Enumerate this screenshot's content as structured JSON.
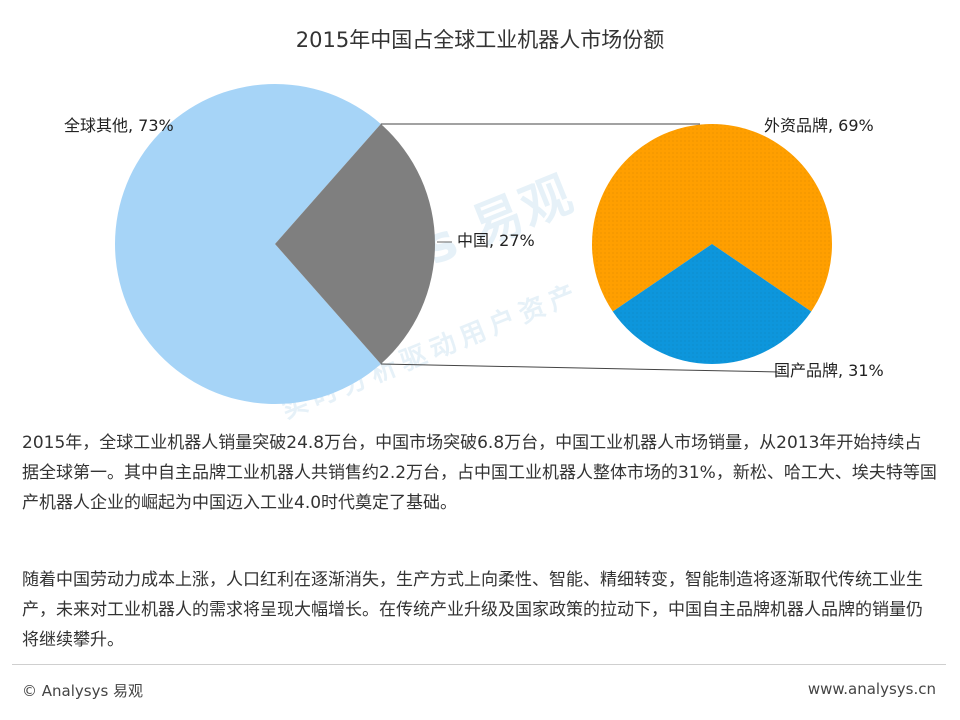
{
  "chart_data": [
    {
      "type": "pie",
      "title": "2015年中国占全球工业机器人市场份额",
      "labels": [
        "全球其他, 73%",
        "中国, 27%"
      ],
      "categories": [
        "全球其他",
        "中国"
      ],
      "values": [
        73,
        27
      ],
      "colors": [
        "#a6d4f7",
        "#7f7f7f"
      ]
    },
    {
      "type": "pie",
      "labels": [
        "外资品牌, 69%",
        "国产品牌, 31%"
      ],
      "categories": [
        "外资品牌",
        "国产品牌"
      ],
      "values": [
        69,
        31
      ],
      "colors": [
        "#ff9f00",
        "#0d96dc"
      ]
    }
  ],
  "title": "2015年中国占全球工业机器人市场份额",
  "paragraphs": [
    "2015年，全球工业机器人销量突破24.8万台，中国市场突破6.8万台，中国工业机器人市场销量，从2013年开始持续占据全球第一。其中自主品牌工业机器人共销售约2.2万台，占中国工业机器人整体市场的31%，新松、哈工大、埃夫特等国产机器人企业的崛起为中国迈入工业4.0时代奠定了基础。",
    "随着中国劳动力成本上涨，人口红利在逐渐消失，生产方式上向柔性、智能、精细转变，智能制造将逐渐取代传统工业生产，未来对工业机器人的需求将呈现大幅增长。在传统产业升级及国家政策的拉动下，中国自主品牌机器人品牌的销量仍将继续攀升。"
  ],
  "footer": {
    "left": "© Analysys 易观",
    "right": "www.analysys.cn"
  },
  "watermark": {
    "main": "Analysys 易观",
    "sub": "实时分析驱动用户资产"
  }
}
